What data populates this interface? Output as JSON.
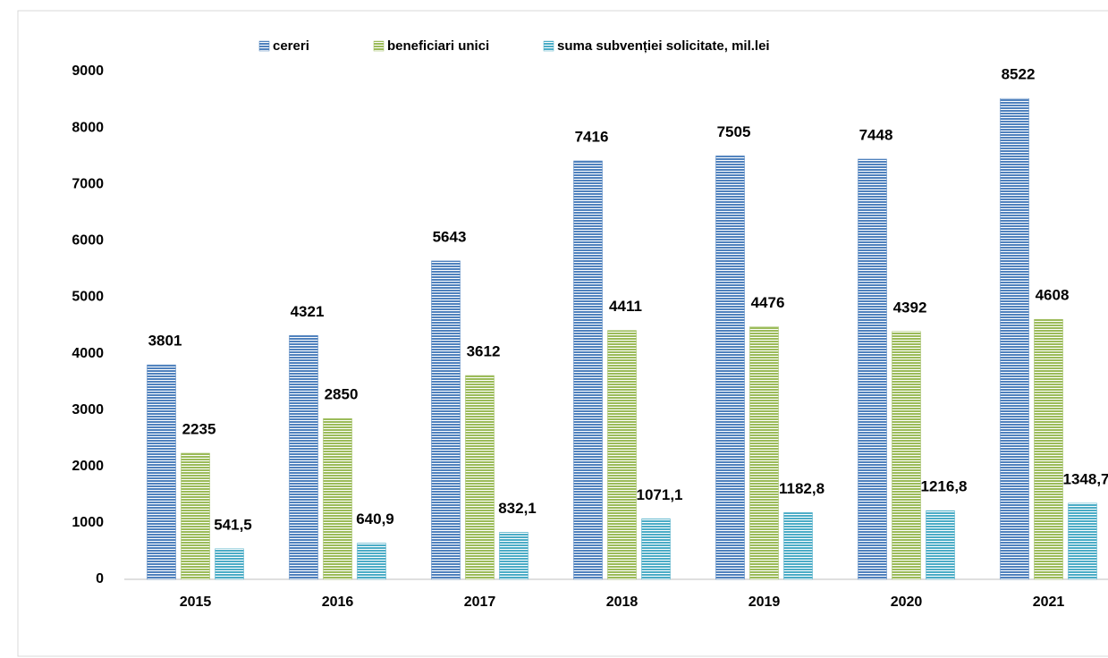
{
  "chart_data": {
    "type": "bar",
    "categories": [
      "2015",
      "2016",
      "2017",
      "2018",
      "2019",
      "2020",
      "2021"
    ],
    "series": [
      {
        "name": "cereri",
        "color": "#4f81bd",
        "values": [
          3801,
          4321,
          5643,
          7416,
          7505,
          7448,
          8522
        ]
      },
      {
        "name": "beneficiari unici",
        "color": "#9bbb59",
        "values": [
          2235,
          2850,
          3612,
          4411,
          4476,
          4392,
          4608
        ]
      },
      {
        "name": "suma subvenției solicitate, mil.lei",
        "color": "#4bacc6",
        "values": [
          541.5,
          640.9,
          832.1,
          1071.1,
          1182.8,
          1216.8,
          1348.7
        ],
        "value_labels": [
          "541,5",
          "640,9",
          "832,1",
          "1071,1",
          "1182,8",
          "1216,8",
          "1348,7"
        ]
      }
    ],
    "ylim": [
      0,
      9000
    ],
    "yticks": [
      0,
      1000,
      2000,
      3000,
      4000,
      5000,
      6000,
      7000,
      8000,
      9000
    ],
    "legend": "top",
    "grid": false
  }
}
